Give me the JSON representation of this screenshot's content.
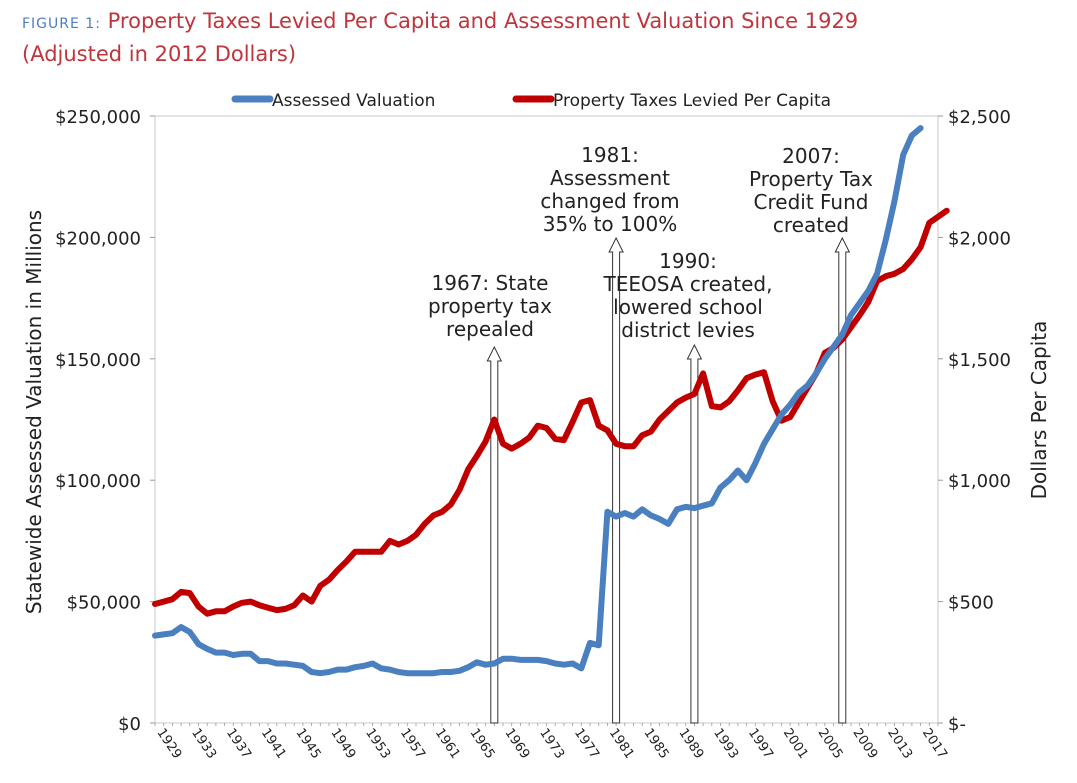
{
  "title": {
    "figure_label": "FIGURE 1:",
    "line1": "Property Taxes Levied Per Capita and Assessment Valuation Since 1929",
    "line2": "(Adjusted in 2012 Dollars)"
  },
  "colors": {
    "assessed": "#4a7fc0",
    "taxes": "#c00000",
    "title": "#c0343b",
    "figure_label": "#4a7fc0"
  },
  "chart_data": {
    "type": "line",
    "title": "Property Taxes Levied Per Capita and Assessment Valuation Since 1929",
    "subtitle": "(Adjusted in 2012 Dollars)",
    "ylabel": "Statewide Assessed Valuation in Millions",
    "y2label": "Dollars Per Capita",
    "xlabel": "",
    "ylim": [
      0,
      250000
    ],
    "y2lim": [
      0,
      2500
    ],
    "xlim": [
      1928,
      2018
    ],
    "grid": false,
    "legend_position": "top",
    "y_ticks": [
      "$0",
      "$50,000",
      "$100,000",
      "$150,000",
      "$200,000",
      "$250,000"
    ],
    "y2_ticks": [
      "$-",
      "$500",
      "$1,000",
      "$1,500",
      "$2,000",
      "$2,500"
    ],
    "x_ticks": [
      "1929",
      "1933",
      "1937",
      "1941",
      "1945",
      "1949",
      "1953",
      "1957",
      "1961",
      "1965",
      "1969",
      "1973",
      "1977",
      "1981",
      "1985",
      "1989",
      "1993",
      "1997",
      "2001",
      "2005",
      "2009",
      "2013",
      "2017"
    ],
    "series": [
      {
        "name": "Assessed Valuation",
        "axis": "left",
        "color": "#4a7fc0",
        "points": [
          [
            1928,
            36000
          ],
          [
            1929,
            36500
          ],
          [
            1930,
            37000
          ],
          [
            1931,
            39500
          ],
          [
            1932,
            37500
          ],
          [
            1933,
            32500
          ],
          [
            1934,
            30500
          ],
          [
            1935,
            29000
          ],
          [
            1936,
            29000
          ],
          [
            1937,
            28000
          ],
          [
            1938,
            28500
          ],
          [
            1939,
            28500
          ],
          [
            1940,
            25500
          ],
          [
            1941,
            25500
          ],
          [
            1942,
            24500
          ],
          [
            1943,
            24500
          ],
          [
            1944,
            24000
          ],
          [
            1945,
            23500
          ],
          [
            1946,
            21000
          ],
          [
            1947,
            20500
          ],
          [
            1948,
            21000
          ],
          [
            1949,
            22000
          ],
          [
            1950,
            22000
          ],
          [
            1951,
            23000
          ],
          [
            1952,
            23500
          ],
          [
            1953,
            24500
          ],
          [
            1954,
            22500
          ],
          [
            1955,
            22000
          ],
          [
            1956,
            21000
          ],
          [
            1957,
            20500
          ],
          [
            1958,
            20500
          ],
          [
            1959,
            20500
          ],
          [
            1960,
            20500
          ],
          [
            1961,
            21000
          ],
          [
            1962,
            21000
          ],
          [
            1963,
            21500
          ],
          [
            1964,
            23000
          ],
          [
            1965,
            25000
          ],
          [
            1966,
            24000
          ],
          [
            1967,
            24500
          ],
          [
            1968,
            26500
          ],
          [
            1969,
            26500
          ],
          [
            1970,
            26000
          ],
          [
            1971,
            26000
          ],
          [
            1972,
            26000
          ],
          [
            1973,
            25500
          ],
          [
            1974,
            24500
          ],
          [
            1975,
            24000
          ],
          [
            1976,
            24500
          ],
          [
            1977,
            22500
          ],
          [
            1978,
            33000
          ],
          [
            1979,
            32000
          ],
          [
            1980,
            87000
          ],
          [
            1981,
            85000
          ],
          [
            1982,
            86500
          ],
          [
            1983,
            85000
          ],
          [
            1984,
            88000
          ],
          [
            1985,
            85500
          ],
          [
            1986,
            84000
          ],
          [
            1987,
            82000
          ],
          [
            1988,
            88000
          ],
          [
            1989,
            89000
          ],
          [
            1990,
            88500
          ],
          [
            1991,
            89500
          ],
          [
            1992,
            90500
          ],
          [
            1993,
            97000
          ],
          [
            1994,
            100000
          ],
          [
            1995,
            104000
          ],
          [
            1996,
            100000
          ],
          [
            1997,
            107000
          ],
          [
            1998,
            115000
          ],
          [
            1999,
            121000
          ],
          [
            2000,
            127000
          ],
          [
            2001,
            131000
          ],
          [
            2002,
            136000
          ],
          [
            2003,
            139000
          ],
          [
            2004,
            144000
          ],
          [
            2005,
            150000
          ],
          [
            2006,
            155000
          ],
          [
            2007,
            160000
          ],
          [
            2008,
            168000
          ],
          [
            2009,
            173000
          ],
          [
            2010,
            178000
          ],
          [
            2011,
            185000
          ],
          [
            2012,
            199000
          ],
          [
            2013,
            215000
          ],
          [
            2014,
            234000
          ],
          [
            2015,
            242000
          ],
          [
            2016,
            245000
          ]
        ]
      },
      {
        "name": "Property Taxes Levied Per Capita",
        "axis": "right",
        "color": "#c00000",
        "points": [
          [
            1928,
            490
          ],
          [
            1929,
            500
          ],
          [
            1930,
            510
          ],
          [
            1931,
            540
          ],
          [
            1932,
            535
          ],
          [
            1933,
            480
          ],
          [
            1934,
            450
          ],
          [
            1935,
            460
          ],
          [
            1936,
            460
          ],
          [
            1937,
            480
          ],
          [
            1938,
            495
          ],
          [
            1939,
            500
          ],
          [
            1940,
            485
          ],
          [
            1941,
            475
          ],
          [
            1942,
            465
          ],
          [
            1943,
            470
          ],
          [
            1944,
            485
          ],
          [
            1945,
            525
          ],
          [
            1946,
            500
          ],
          [
            1947,
            565
          ],
          [
            1948,
            590
          ],
          [
            1949,
            630
          ],
          [
            1950,
            665
          ],
          [
            1951,
            705
          ],
          [
            1952,
            705
          ],
          [
            1953,
            705
          ],
          [
            1954,
            705
          ],
          [
            1955,
            750
          ],
          [
            1956,
            735
          ],
          [
            1957,
            750
          ],
          [
            1958,
            775
          ],
          [
            1959,
            820
          ],
          [
            1960,
            855
          ],
          [
            1961,
            870
          ],
          [
            1962,
            900
          ],
          [
            1963,
            960
          ],
          [
            1964,
            1045
          ],
          [
            1965,
            1100
          ],
          [
            1966,
            1160
          ],
          [
            1967,
            1250
          ],
          [
            1968,
            1150
          ],
          [
            1969,
            1130
          ],
          [
            1970,
            1150
          ],
          [
            1971,
            1175
          ],
          [
            1972,
            1225
          ],
          [
            1973,
            1215
          ],
          [
            1974,
            1170
          ],
          [
            1975,
            1165
          ],
          [
            1976,
            1240
          ],
          [
            1977,
            1320
          ],
          [
            1978,
            1330
          ],
          [
            1979,
            1225
          ],
          [
            1980,
            1205
          ],
          [
            1981,
            1150
          ],
          [
            1982,
            1140
          ],
          [
            1983,
            1140
          ],
          [
            1984,
            1185
          ],
          [
            1985,
            1200
          ],
          [
            1986,
            1250
          ],
          [
            1987,
            1285
          ],
          [
            1988,
            1320
          ],
          [
            1989,
            1340
          ],
          [
            1990,
            1355
          ],
          [
            1991,
            1440
          ],
          [
            1992,
            1305
          ],
          [
            1993,
            1300
          ],
          [
            1994,
            1325
          ],
          [
            1995,
            1370
          ],
          [
            1996,
            1420
          ],
          [
            1997,
            1435
          ],
          [
            1998,
            1445
          ],
          [
            1999,
            1325
          ],
          [
            2000,
            1245
          ],
          [
            2001,
            1260
          ],
          [
            2002,
            1320
          ],
          [
            2003,
            1380
          ],
          [
            2004,
            1440
          ],
          [
            2005,
            1525
          ],
          [
            2006,
            1545
          ],
          [
            2007,
            1580
          ],
          [
            2008,
            1630
          ],
          [
            2009,
            1680
          ],
          [
            2010,
            1735
          ],
          [
            2011,
            1820
          ],
          [
            2012,
            1840
          ],
          [
            2013,
            1850
          ],
          [
            2014,
            1870
          ],
          [
            2015,
            1910
          ],
          [
            2016,
            1960
          ],
          [
            2017,
            2060
          ],
          [
            2018,
            2085
          ],
          [
            2019,
            2110
          ]
        ]
      }
    ],
    "annotations": [
      {
        "year": 1967,
        "lines": [
          "1967: State",
          "property tax",
          "repealed"
        ]
      },
      {
        "year": 1981,
        "lines": [
          "1981:",
          "Assessment",
          "changed from",
          "35% to 100%"
        ]
      },
      {
        "year": 1990,
        "lines": [
          "1990:",
          "TEEOSA created,",
          "lowered school",
          "district levies"
        ]
      },
      {
        "year": 2007,
        "lines": [
          "2007:",
          "Property Tax",
          "Credit Fund",
          "created"
        ]
      }
    ]
  }
}
